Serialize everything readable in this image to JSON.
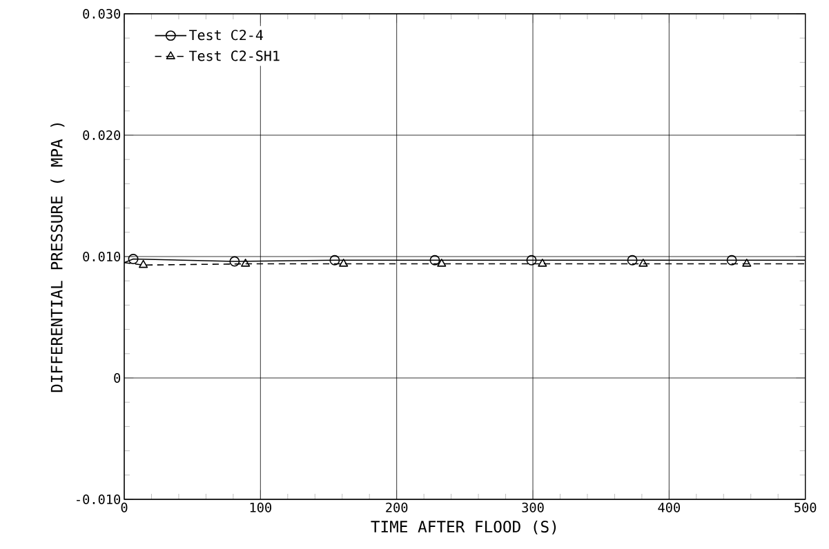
{
  "chart_data": {
    "type": "line",
    "xlabel": "TIME AFTER FLOOD (S)",
    "ylabel": "DIFFERENTIAL PRESSURE ( MPA )",
    "xlim": [
      0,
      500
    ],
    "xticks": [
      0,
      100,
      200,
      300,
      400,
      500
    ],
    "ylim": [
      -0.01,
      0.03
    ],
    "yticks": [
      {
        "value": -0.01,
        "label": "-0.010"
      },
      {
        "value": 0,
        "label": "0"
      },
      {
        "value": 0.01,
        "label": "0.010"
      },
      {
        "value": 0.02,
        "label": "0.020"
      },
      {
        "value": 0.03,
        "label": "0.030"
      }
    ],
    "grid": true,
    "legend": "top left",
    "series": [
      {
        "name": "Test C2-4",
        "color": "#000000",
        "marker": "circle",
        "line_style": "solid",
        "x": [
          0,
          6.6,
          81,
          154.5,
          228,
          299,
          373,
          446,
          500
        ],
        "values": [
          0.0095,
          0.0098,
          0.0096,
          0.0097,
          0.0097,
          0.0097,
          0.0097,
          0.0097,
          0.0097
        ]
      },
      {
        "name": "Test C2-SH1",
        "color": "#000000",
        "marker": "triangle",
        "line_style": "dashed",
        "x": [
          0,
          14,
          89,
          161,
          233,
          307,
          381,
          457,
          500
        ],
        "values": [
          0.0095,
          0.0093,
          0.0094,
          0.0094,
          0.0094,
          0.0094,
          0.0094,
          0.0094,
          0.0094
        ]
      }
    ]
  }
}
